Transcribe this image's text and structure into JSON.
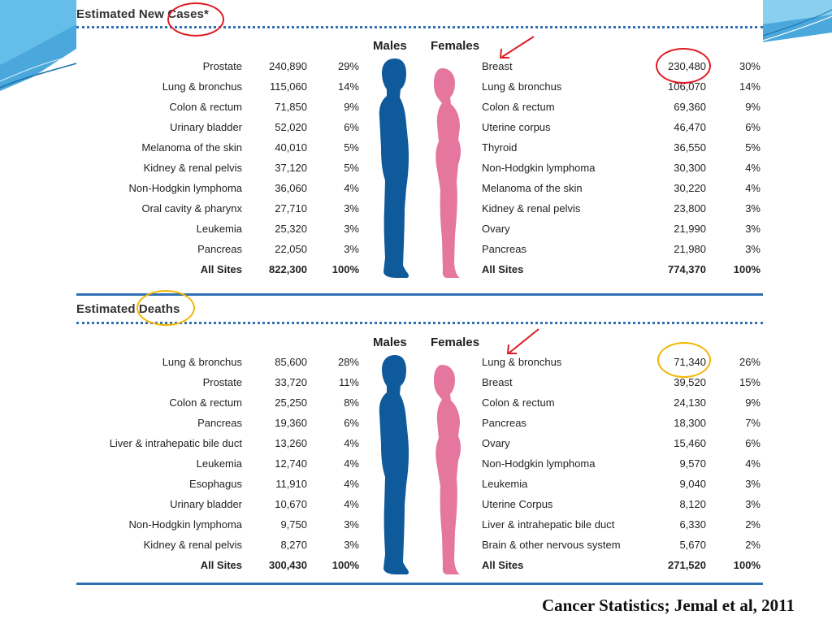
{
  "new_cases": {
    "title": "Estimated New Cases*",
    "males_header": "Males",
    "females_header": "Females",
    "males": [
      {
        "site": "Prostate",
        "count": "240,890",
        "pct": "29%"
      },
      {
        "site": "Lung & bronchus",
        "count": "115,060",
        "pct": "14%"
      },
      {
        "site": "Colon & rectum",
        "count": "71,850",
        "pct": "9%"
      },
      {
        "site": "Urinary bladder",
        "count": "52,020",
        "pct": "6%"
      },
      {
        "site": "Melanoma of the skin",
        "count": "40,010",
        "pct": "5%"
      },
      {
        "site": "Kidney & renal pelvis",
        "count": "37,120",
        "pct": "5%"
      },
      {
        "site": "Non-Hodgkin lymphoma",
        "count": "36,060",
        "pct": "4%"
      },
      {
        "site": "Oral cavity & pharynx",
        "count": "27,710",
        "pct": "3%"
      },
      {
        "site": "Leukemia",
        "count": "25,320",
        "pct": "3%"
      },
      {
        "site": "Pancreas",
        "count": "22,050",
        "pct": "3%"
      }
    ],
    "males_total": {
      "site": "All Sites",
      "count": "822,300",
      "pct": "100%"
    },
    "females": [
      {
        "site": "Breast",
        "count": "230,480",
        "pct": "30%"
      },
      {
        "site": "Lung & bronchus",
        "count": "106,070",
        "pct": "14%"
      },
      {
        "site": "Colon & rectum",
        "count": "69,360",
        "pct": "9%"
      },
      {
        "site": "Uterine corpus",
        "count": "46,470",
        "pct": "6%"
      },
      {
        "site": "Thyroid",
        "count": "36,550",
        "pct": "5%"
      },
      {
        "site": "Non-Hodgkin lymphoma",
        "count": "30,300",
        "pct": "4%"
      },
      {
        "site": "Melanoma of the skin",
        "count": "30,220",
        "pct": "4%"
      },
      {
        "site": "Kidney & renal pelvis",
        "count": "23,800",
        "pct": "3%"
      },
      {
        "site": "Ovary",
        "count": "21,990",
        "pct": "3%"
      },
      {
        "site": "Pancreas",
        "count": "21,980",
        "pct": "3%"
      }
    ],
    "females_total": {
      "site": "All Sites",
      "count": "774,370",
      "pct": "100%"
    }
  },
  "deaths": {
    "title": "Estimated Deaths",
    "males_header": "Males",
    "females_header": "Females",
    "males": [
      {
        "site": "Lung & bronchus",
        "count": "85,600",
        "pct": "28%"
      },
      {
        "site": "Prostate",
        "count": "33,720",
        "pct": "11%"
      },
      {
        "site": "Colon & rectum",
        "count": "25,250",
        "pct": "8%"
      },
      {
        "site": "Pancreas",
        "count": "19,360",
        "pct": "6%"
      },
      {
        "site": "Liver & intrahepatic bile duct",
        "count": "13,260",
        "pct": "4%"
      },
      {
        "site": "Leukemia",
        "count": "12,740",
        "pct": "4%"
      },
      {
        "site": "Esophagus",
        "count": "11,910",
        "pct": "4%"
      },
      {
        "site": "Urinary bladder",
        "count": "10,670",
        "pct": "4%"
      },
      {
        "site": "Non-Hodgkin lymphoma",
        "count": "9,750",
        "pct": "3%"
      },
      {
        "site": "Kidney & renal pelvis",
        "count": "8,270",
        "pct": "3%"
      }
    ],
    "males_total": {
      "site": "All Sites",
      "count": "300,430",
      "pct": "100%"
    },
    "females": [
      {
        "site": "Lung & bronchus",
        "count": "71,340",
        "pct": "26%"
      },
      {
        "site": "Breast",
        "count": "39,520",
        "pct": "15%"
      },
      {
        "site": "Colon & rectum",
        "count": "24,130",
        "pct": "9%"
      },
      {
        "site": "Pancreas",
        "count": "18,300",
        "pct": "7%"
      },
      {
        "site": "Ovary",
        "count": "15,460",
        "pct": "6%"
      },
      {
        "site": "Non-Hodgkin lymphoma",
        "count": "9,570",
        "pct": "4%"
      },
      {
        "site": "Leukemia",
        "count": "9,040",
        "pct": "3%"
      },
      {
        "site": "Uterine Corpus",
        "count": "8,120",
        "pct": "3%"
      },
      {
        "site": "Liver & intrahepatic bile duct",
        "count": "6,330",
        "pct": "2%"
      },
      {
        "site": "Brain & other nervous system",
        "count": "5,670",
        "pct": "2%"
      }
    ],
    "females_total": {
      "site": "All Sites",
      "count": "271,520",
      "pct": "100%"
    }
  },
  "citation": "Cancer Statistics; Jemal et al, 2011",
  "colors": {
    "male_figure": "#0f5a9a",
    "female_figure": "#e5779f",
    "rule": "#2f6fb2",
    "red_annotation": "#e01b24",
    "yellow_annotation": "#f2b705"
  }
}
